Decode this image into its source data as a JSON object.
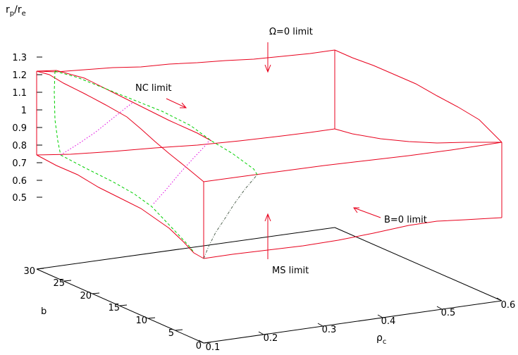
{
  "chart_data": {
    "type": "surface-3d",
    "zlabel": {
      "main": "r",
      "sub1": "p",
      "slash": "/r",
      "sub2": "e"
    },
    "xlabel": {
      "main": "ρ",
      "sub": "c"
    },
    "ylabel": "b",
    "x_ticks": [
      "0.1",
      "0.2",
      "0.3",
      "0.4",
      "0.5",
      "0.6"
    ],
    "y_ticks": [
      "0",
      "5",
      "10",
      "15",
      "20",
      "25",
      "30"
    ],
    "z_ticks": [
      "0.5",
      "0.6",
      "0.7",
      "0.8",
      "0.9",
      "1",
      "1.1",
      "1.2",
      "1.3"
    ],
    "xlim": [
      0.1,
      0.6
    ],
    "ylim": [
      0,
      30
    ],
    "zlim": [
      0.5,
      1.3
    ],
    "annotations": [
      {
        "id": "omega",
        "text": "Ω=0 limit"
      },
      {
        "id": "nc",
        "text": "NC limit"
      },
      {
        "id": "b0",
        "text": "B=0 limit"
      },
      {
        "id": "ms",
        "text": "MS limit"
      }
    ],
    "colors": {
      "surface": "#e8001c",
      "nc_limit": "#00d000",
      "contour": "#e000e0",
      "ms_limit": "#556655",
      "arrow": "#e8001c"
    }
  }
}
